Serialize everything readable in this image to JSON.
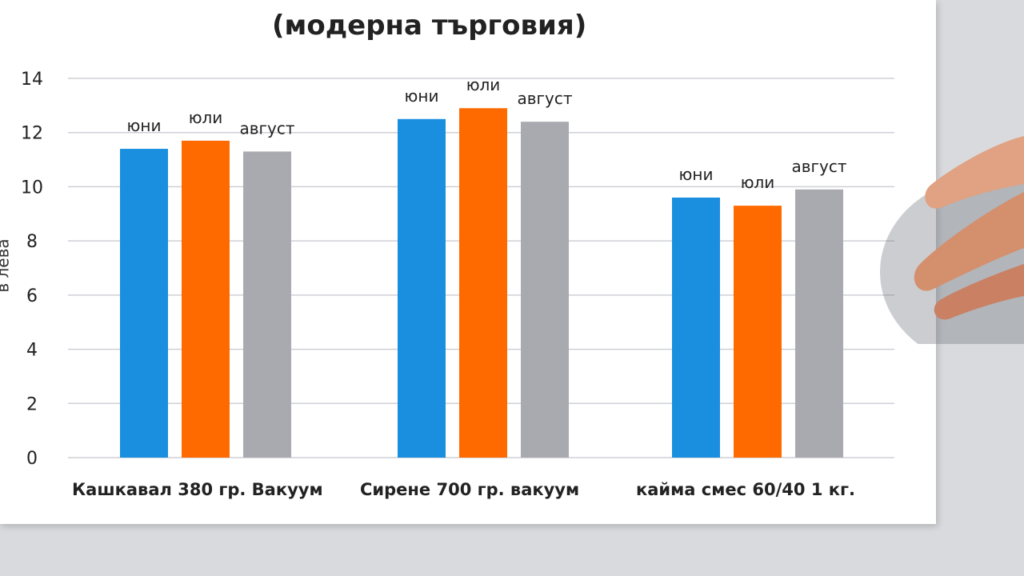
{
  "chart_data": {
    "type": "bar",
    "title": "(модерна търговия)",
    "ylabel": "в лева",
    "xlabel": "",
    "ylim": [
      0,
      14
    ],
    "yticks": [
      0,
      2,
      4,
      6,
      8,
      10,
      12,
      14
    ],
    "grid": true,
    "categories": [
      "Кашкавал 380 гр. Вакуум",
      "Сирене 700 гр. вакуум",
      "кайма смес 60/40  1 кг."
    ],
    "series": [
      {
        "name": "юни",
        "color": "#1a8fe0",
        "values": [
          11.4,
          12.5,
          9.6
        ]
      },
      {
        "name": "юли",
        "color": "#ff6a00",
        "values": [
          11.7,
          12.9,
          9.3
        ]
      },
      {
        "name": "август",
        "color": "#a9a9b0",
        "values": [
          11.3,
          12.4,
          9.9
        ]
      }
    ]
  }
}
